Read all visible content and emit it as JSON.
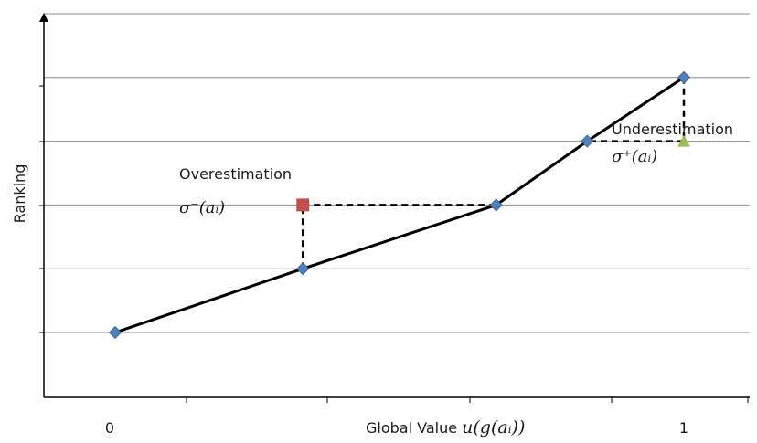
{
  "chart_data": {
    "type": "line",
    "title": "",
    "xlabel": {
      "prefix": "Global Value ",
      "math": "u(g(aᵢ))"
    },
    "ylabel": "Ranking",
    "x_tick_labels": [
      "0",
      "1"
    ],
    "grid": "horizontal",
    "series": [
      {
        "name": "",
        "color": "#000000",
        "marker_color": "#4F81BD",
        "x": [
          0.0,
          0.33,
          0.67,
          0.83,
          1.0
        ],
        "y": [
          1,
          2,
          3,
          4,
          5
        ]
      }
    ],
    "annotations": [
      {
        "kind": "overestimation",
        "label": "Overestimation",
        "symbol": "σ⁻(aᵢ)",
        "marker": "square",
        "marker_color": "#C0504D",
        "x": 0.33,
        "y_from": 2,
        "y_to": 3,
        "to_x": 0.67
      },
      {
        "kind": "underestimation",
        "label": "Underestimation",
        "symbol": "σ⁺(aᵢ)",
        "marker": "triangle",
        "marker_color": "#9BBB59",
        "x": 1.0,
        "y_from": 5,
        "y_to": 4,
        "to_x": 0.83
      }
    ]
  }
}
